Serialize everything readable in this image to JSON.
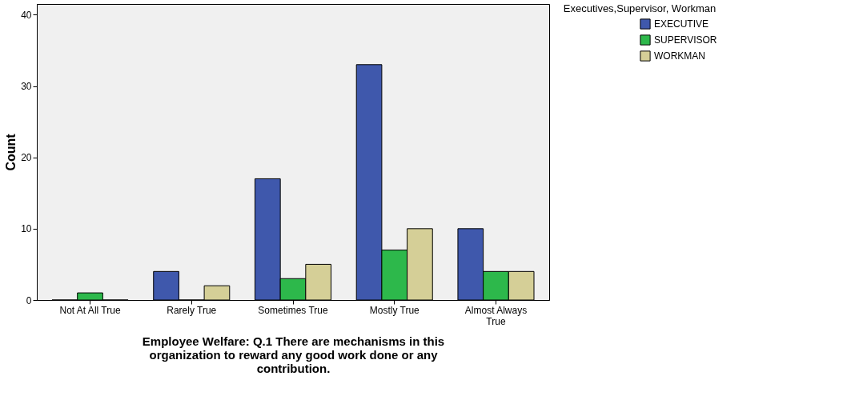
{
  "chart_data": {
    "type": "bar",
    "xlabel": "Employee Welfare: Q.1 There are mechanisms in this organization to reward any good work done or any contribution.",
    "ylabel": "Count",
    "legend_title": "Executives,Supervisor, Workman",
    "categories": [
      "Not At All True",
      "Rarely True",
      "Sometimes True",
      "Mostly True",
      "Almost Always True"
    ],
    "series": [
      {
        "name": "EXECUTIVE",
        "color": "#3f58ac",
        "values": [
          0,
          4,
          17,
          33,
          10
        ]
      },
      {
        "name": "SUPERVISOR",
        "color": "#2db84b",
        "values": [
          1,
          0,
          3,
          7,
          4
        ]
      },
      {
        "name": "WORKMAN",
        "color": "#d5cf97",
        "values": [
          0,
          2,
          5,
          10,
          4
        ]
      }
    ],
    "ylim": [
      0,
      41.5
    ],
    "yticks": [
      0,
      10,
      20,
      30,
      40
    ],
    "grid": false,
    "legend": "top right"
  }
}
